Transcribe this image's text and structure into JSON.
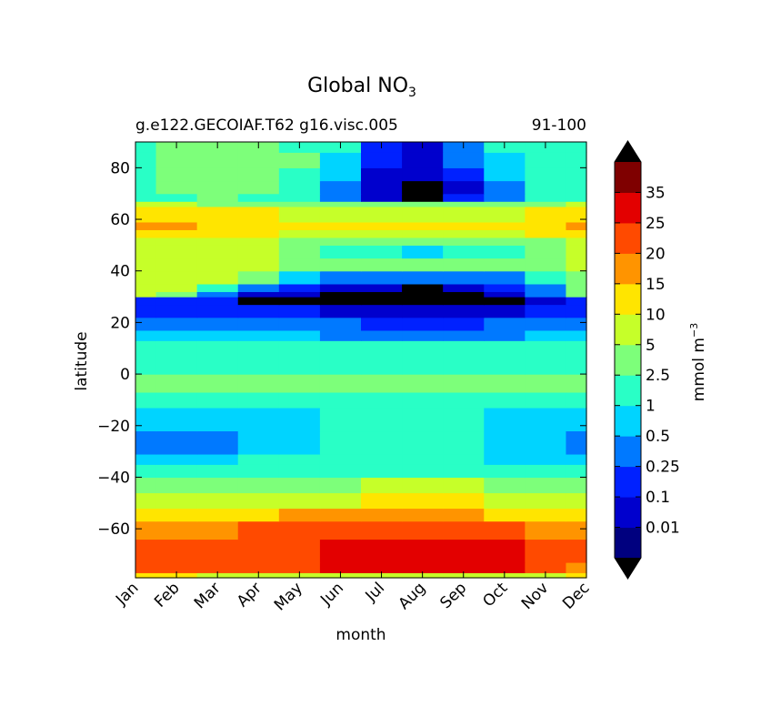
{
  "chart_data": {
    "type": "heatmap",
    "title": "Global NO",
    "title_subscript": "3",
    "subtitle_left": "g.e122.GECOIAF.T62 g16.visc.005",
    "subtitle_right": "91-100",
    "xlabel": "month",
    "ylabel": "latitude",
    "x_categories": [
      "Jan",
      "Feb",
      "Mar",
      "Apr",
      "May",
      "Jun",
      "Jul",
      "Aug",
      "Sep",
      "Oct",
      "Nov",
      "Dec"
    ],
    "ylim": [
      -79,
      90
    ],
    "y_ticks": [
      80,
      60,
      40,
      20,
      0,
      -20,
      -40,
      -60
    ],
    "y_tick_labels": [
      "80",
      "60",
      "40",
      "20",
      "0",
      "−20",
      "−40",
      "−60"
    ],
    "colorbar": {
      "label": "mmol m",
      "label_superscript": "−3",
      "levels": [
        "0.01",
        "0.1",
        "0.25",
        "0.5",
        "1",
        "2.5",
        "5",
        "10",
        "15",
        "20",
        "25",
        "35"
      ],
      "colors": [
        "#00007f",
        "#0000cd",
        "#0021ff",
        "#0079ff",
        "#00d4ff",
        "#29ffc6",
        "#7dff7a",
        "#c6ff29",
        "#ffe500",
        "#ff9400",
        "#ff4a00",
        "#e30000",
        "#7f0000"
      ],
      "under_color": "#000000",
      "over_color": "#000000"
    },
    "bands": [
      {
        "lat": [
          -79,
          -77
        ],
        "values": [
          14,
          12,
          9,
          8,
          7,
          6,
          6,
          6,
          6,
          6,
          8,
          12
        ]
      },
      {
        "lat": [
          -77,
          -73
        ],
        "values": [
          22,
          22,
          22,
          22,
          22,
          28,
          28,
          28,
          28,
          28,
          22,
          18
        ]
      },
      {
        "lat": [
          -73,
          -64
        ],
        "values": [
          22,
          22,
          22,
          22,
          22,
          28,
          28,
          28,
          28,
          28,
          22,
          22
        ]
      },
      {
        "lat": [
          -64,
          -57
        ],
        "values": [
          17,
          17,
          17,
          22,
          22,
          22,
          22,
          22,
          22,
          22,
          17,
          17
        ]
      },
      {
        "lat": [
          -57,
          -52
        ],
        "values": [
          12,
          12,
          12,
          12,
          17,
          17,
          17,
          17,
          17,
          12,
          12,
          12
        ]
      },
      {
        "lat": [
          -52,
          -46
        ],
        "values": [
          7,
          7,
          7,
          7,
          7,
          7,
          12,
          12,
          12,
          7,
          7,
          7
        ]
      },
      {
        "lat": [
          -46,
          -40
        ],
        "values": [
          3.5,
          3.5,
          3.5,
          3.5,
          3.5,
          3.5,
          7,
          7,
          7,
          3.5,
          3.5,
          3.5
        ]
      },
      {
        "lat": [
          -40,
          -35
        ],
        "values": [
          1.5,
          1.5,
          1.5,
          1.5,
          1.5,
          1.5,
          1.5,
          1.5,
          1.5,
          1.5,
          1.5,
          1.5
        ]
      },
      {
        "lat": [
          -35,
          -31
        ],
        "values": [
          0.7,
          0.7,
          0.7,
          1.5,
          1.5,
          1.5,
          1.5,
          1.5,
          1.5,
          0.7,
          0.7,
          0.7
        ]
      },
      {
        "lat": [
          -31,
          -22
        ],
        "values": [
          0.35,
          0.35,
          0.35,
          0.7,
          0.7,
          1.5,
          1.5,
          1.5,
          1.5,
          0.7,
          0.7,
          0.35
        ]
      },
      {
        "lat": [
          -22,
          -13
        ],
        "values": [
          0.7,
          0.7,
          0.7,
          0.7,
          0.7,
          1.5,
          1.5,
          1.5,
          1.5,
          0.7,
          0.7,
          0.7
        ]
      },
      {
        "lat": [
          -13,
          -7
        ],
        "values": [
          1.5,
          1.5,
          1.5,
          1.5,
          1.5,
          1.5,
          1.5,
          1.5,
          1.5,
          1.5,
          1.5,
          1.5
        ]
      },
      {
        "lat": [
          -7,
          0
        ],
        "values": [
          3.5,
          3.5,
          3.5,
          3.5,
          3.5,
          3.5,
          3.5,
          3.5,
          3.5,
          3.5,
          3.5,
          3.5
        ]
      },
      {
        "lat": [
          0,
          13
        ],
        "values": [
          1.5,
          1.5,
          1.5,
          1.5,
          1.5,
          1.5,
          1.5,
          1.5,
          1.5,
          1.5,
          1.5,
          1.5
        ]
      },
      {
        "lat": [
          13,
          17
        ],
        "values": [
          0.7,
          0.7,
          0.7,
          0.7,
          0.7,
          0.35,
          0.35,
          0.35,
          0.35,
          0.35,
          0.7,
          0.7
        ]
      },
      {
        "lat": [
          17,
          22
        ],
        "values": [
          0.35,
          0.35,
          0.35,
          0.35,
          0.35,
          0.35,
          0.17,
          0.17,
          0.17,
          0.35,
          0.35,
          0.35
        ]
      },
      {
        "lat": [
          22,
          27
        ],
        "values": [
          0.17,
          0.17,
          0.17,
          0.17,
          0.17,
          0.05,
          0.05,
          0.05,
          0.05,
          0.05,
          0.17,
          0.17
        ]
      },
      {
        "lat": [
          27,
          30
        ],
        "values": [
          0.17,
          0.17,
          0.17,
          0,
          0,
          0,
          0,
          0,
          0,
          0,
          0.05,
          0.17
        ]
      },
      {
        "lat": [
          30,
          32
        ],
        "values": [
          7,
          3.5,
          0.35,
          0.05,
          0.05,
          0,
          0,
          0,
          0,
          0.05,
          0.35,
          3.5
        ]
      },
      {
        "lat": [
          32,
          35
        ],
        "values": [
          7,
          7,
          1.5,
          0.35,
          0.17,
          0.05,
          0.05,
          0,
          0.05,
          0.17,
          0.35,
          3.5
        ]
      },
      {
        "lat": [
          35,
          40
        ],
        "values": [
          7,
          7,
          7,
          3.5,
          0.7,
          0.35,
          0.35,
          0.35,
          0.35,
          0.35,
          1.5,
          3.5
        ]
      },
      {
        "lat": [
          40,
          45
        ],
        "values": [
          7,
          7,
          7,
          7,
          3.5,
          3.5,
          3.5,
          3.5,
          3.5,
          3.5,
          3.5,
          7
        ]
      },
      {
        "lat": [
          45,
          50
        ],
        "values": [
          7,
          7,
          7,
          7,
          3.5,
          1.5,
          1.5,
          0.7,
          1.5,
          1.5,
          3.5,
          7
        ]
      },
      {
        "lat": [
          50,
          53
        ],
        "values": [
          7,
          7,
          7,
          7,
          3.5,
          3.5,
          3.5,
          3.5,
          3.5,
          3.5,
          3.5,
          7
        ]
      },
      {
        "lat": [
          53,
          56
        ],
        "values": [
          12,
          12,
          12,
          12,
          7,
          7,
          7,
          7,
          7,
          7,
          12,
          12
        ]
      },
      {
        "lat": [
          56,
          59
        ],
        "values": [
          17,
          17,
          12,
          12,
          12,
          12,
          12,
          12,
          12,
          12,
          12,
          17
        ]
      },
      {
        "lat": [
          59,
          65
        ],
        "values": [
          12,
          12,
          12,
          12,
          7,
          7,
          7,
          7,
          7,
          7,
          12,
          12
        ]
      },
      {
        "lat": [
          65,
          67
        ],
        "values": [
          7,
          7,
          3.5,
          3.5,
          3.5,
          3.5,
          3.5,
          3.5,
          3.5,
          3.5,
          3.5,
          7
        ]
      },
      {
        "lat": [
          67,
          70
        ],
        "values": [
          1.5,
          1.5,
          3.5,
          1.5,
          1.5,
          0.35,
          0.05,
          0,
          0.17,
          0.35,
          1.5,
          1.5
        ]
      },
      {
        "lat": [
          70,
          75
        ],
        "values": [
          1.5,
          3.5,
          3.5,
          3.5,
          1.5,
          0.35,
          0.05,
          0,
          0.05,
          0.35,
          1.5,
          1.5
        ]
      },
      {
        "lat": [
          75,
          80
        ],
        "values": [
          1.5,
          3.5,
          3.5,
          3.5,
          1.5,
          0.7,
          0.05,
          0.05,
          0.17,
          0.7,
          1.5,
          1.5
        ]
      },
      {
        "lat": [
          80,
          86
        ],
        "values": [
          1.5,
          3.5,
          3.5,
          3.5,
          3.5,
          0.7,
          0.17,
          0.05,
          0.35,
          0.7,
          1.5,
          1.5
        ]
      },
      {
        "lat": [
          86,
          90
        ],
        "values": [
          1.5,
          3.5,
          3.5,
          3.5,
          1.5,
          1.5,
          0.17,
          0.05,
          0.35,
          1.5,
          1.5,
          1.5
        ]
      }
    ],
    "grid": false,
    "legend": "colorbar-right"
  }
}
